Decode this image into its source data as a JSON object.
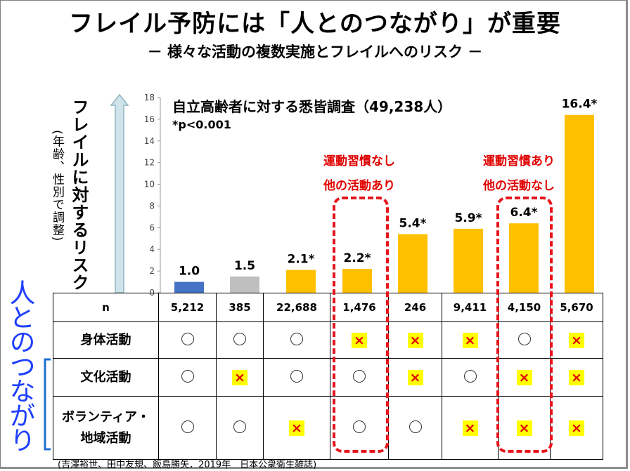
{
  "title": "フレイル予防には「人とのつながり」が重要",
  "subtitle": "－ 様々な活動の複数実施とフレイルへのリスク －",
  "y_axis_label": "フレイルに対するリスク",
  "y_axis_sublabel": "(年齢、性別で調整)",
  "side_label": "人とのつながり",
  "survey_note": "自立高齢者に対する悉皆調査（49,238人）",
  "p_note": "*p<0.001",
  "callouts": [
    {
      "line1": "運動習慣なし",
      "line2": "他の活動あり"
    },
    {
      "line1": "運動習慣あり",
      "line2": "他の活動なし"
    }
  ],
  "citation": "(吉澤裕世、田中友規、飯島勝矢．2019年　日本公衆衛生雑誌)",
  "colors": {
    "blue": "#4472c4",
    "gray": "#bfbfbf",
    "gold": "#ffc000",
    "red": "#e8141c",
    "side": "#1f3fff"
  },
  "chart_data": {
    "type": "bar",
    "ylim": [
      0,
      18
    ],
    "yticks": [
      0,
      2,
      4,
      6,
      8,
      10,
      12,
      14,
      16,
      18
    ],
    "categories": [
      "5,212",
      "385",
      "22,688",
      "1,476",
      "246",
      "9,411",
      "4,150",
      "5,670"
    ],
    "values": [
      1.0,
      1.5,
      2.1,
      2.2,
      5.4,
      5.9,
      6.4,
      16.4
    ],
    "labels": [
      "1.0",
      "1.5",
      "2.1*",
      "2.2*",
      "5.4*",
      "5.9*",
      "6.4*",
      "16.4*"
    ],
    "bar_colors": [
      "#4472c4",
      "#bfbfbf",
      "#ffc000",
      "#ffc000",
      "#ffc000",
      "#ffc000",
      "#ffc000",
      "#ffc000"
    ]
  },
  "table": {
    "n_header": "n",
    "n_values": [
      "5,212",
      "385",
      "22,688",
      "1,476",
      "246",
      "9,411",
      "4,150",
      "5,670"
    ],
    "rows": [
      {
        "label": "身体活動",
        "cells": [
          "○",
          "○",
          "○",
          "×",
          "×",
          "×",
          "○",
          "×"
        ]
      },
      {
        "label": "文化活動",
        "cells": [
          "○",
          "×",
          "○",
          "○",
          "×",
          "○",
          "×",
          "×"
        ]
      },
      {
        "label": "ボランティア・地域活動",
        "cells": [
          "○",
          "○",
          "×",
          "○",
          "○",
          "×",
          "×",
          "×"
        ]
      }
    ]
  }
}
